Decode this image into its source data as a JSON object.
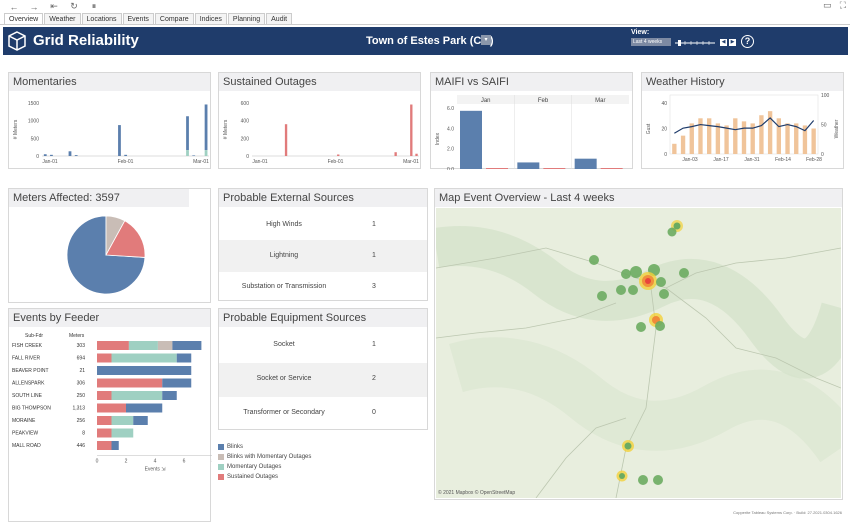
{
  "browser": {
    "back_icon": "←",
    "forward_icon": "→",
    "first_icon": "⇤",
    "reload_icon": "↻",
    "pause_icon": "⏸"
  },
  "tabs": [
    "Overview",
    "Weather",
    "Locations",
    "Events",
    "Compare",
    "Indices",
    "Planning",
    "Audit"
  ],
  "header": {
    "title": "Grid Reliability",
    "town": "Town of Estes Park (CO)",
    "view_label": "View:",
    "view_value": "Last 4 weeks",
    "help": "?"
  },
  "colors": {
    "navy": "#1f3c6b",
    "blue": "#5b7fad",
    "red": "#e17b7b",
    "teal": "#9fd0c2",
    "gray": "#c9bdb6",
    "orange": "#f0c49a"
  },
  "momentaries": {
    "title": "Momentaries",
    "chart_data": {
      "type": "bar",
      "ylabel": "# Meters",
      "yticks": [
        "1500",
        "1000",
        "500",
        "0"
      ],
      "xticks": [
        "Jan-01",
        "Feb-01",
        "Mar-01"
      ],
      "ylim": [
        0,
        1800
      ],
      "values": [
        60,
        40,
        0,
        0,
        160,
        30,
        0,
        0,
        0,
        0,
        0,
        0,
        1050,
        40,
        0,
        0,
        0,
        0,
        0,
        0,
        0,
        0,
        0,
        1350,
        20,
        0,
        1750
      ],
      "teal": [
        0,
        0,
        0,
        0,
        0,
        0,
        0,
        0,
        0,
        0,
        0,
        0,
        0,
        0,
        0,
        0,
        0,
        0,
        0,
        0,
        0,
        0,
        0,
        200,
        0,
        0,
        200
      ]
    }
  },
  "sustained": {
    "title": "Sustained Outages",
    "chart_data": {
      "type": "bar",
      "ylabel": "# Meters",
      "yticks": [
        "600",
        "400",
        "200",
        "0"
      ],
      "xticks": [
        "Jan-01",
        "Feb-01",
        "Mar-01"
      ],
      "ylim": [
        0,
        700
      ],
      "values": [
        0,
        0,
        0,
        0,
        0,
        0,
        420,
        0,
        0,
        0,
        0,
        0,
        0,
        0,
        0,
        0,
        20,
        0,
        0,
        0,
        0,
        0,
        0,
        0,
        0,
        0,
        0,
        50,
        0,
        0,
        680,
        30
      ]
    }
  },
  "maifi": {
    "title": "MAIFI vs SAIFI",
    "chart_data": {
      "type": "bar",
      "ylabel": "Index",
      "categories": [
        "Jan",
        "Feb",
        "Mar"
      ],
      "yticks": [
        "6.0",
        "4.0",
        "2.0",
        "0.0"
      ],
      "ylim": [
        0,
        6.5
      ],
      "series": [
        {
          "name": "MAIFI",
          "values": [
            6.2,
            0.7,
            1.1
          ]
        },
        {
          "name": "SAIFI",
          "values": [
            0.05,
            0.05,
            0.05
          ]
        }
      ]
    }
  },
  "weather": {
    "title": "Weather History",
    "chart_data": {
      "type": "bar",
      "ylabel": "Gust",
      "y2label": "Weather",
      "yticks": [
        "40",
        "20",
        "0"
      ],
      "y2ticks": [
        "100",
        "50",
        "0"
      ],
      "xticks": [
        "Jan-03",
        "Jan-17",
        "Jan-31",
        "Feb-14",
        "Feb-28"
      ],
      "bars": [
        10,
        18,
        30,
        35,
        35,
        30,
        28,
        35,
        32,
        30,
        38,
        42,
        35,
        30,
        30,
        28,
        25
      ],
      "line": [
        25,
        35,
        38,
        42,
        40,
        38,
        35,
        32,
        35,
        35,
        40,
        55,
        38,
        42,
        38,
        30,
        50
      ]
    }
  },
  "meters": {
    "title": "Meters Affected: 3597",
    "chart_data": {
      "type": "pie",
      "values": [
        74,
        8,
        18
      ]
    }
  },
  "external": {
    "title": "Probable External Sources",
    "rows": [
      {
        "label": "High Winds",
        "value": "1"
      },
      {
        "label": "Lightning",
        "value": "1"
      },
      {
        "label": "Substation or Transmission",
        "value": "3"
      }
    ]
  },
  "equipment": {
    "title": "Probable Equipment Sources",
    "rows": [
      {
        "label": "Socket",
        "value": "1"
      },
      {
        "label": "Socket or Service",
        "value": "2"
      },
      {
        "label": "Transformer or Secondary",
        "value": "0"
      }
    ]
  },
  "feeder": {
    "title": "Events by Feeder",
    "col_subfdr": "Sub-Fdr",
    "col_meters": "Meters",
    "rows": [
      {
        "name": "FISH CREEK",
        "meters": "303",
        "segs": [
          2.2,
          2.0,
          1.0,
          2.0
        ]
      },
      {
        "name": "FALL RIVER",
        "meters": "694",
        "segs": [
          1.0,
          4.5,
          0,
          1.0
        ]
      },
      {
        "name": "BEAVER POINT",
        "meters": "21",
        "segs": [
          0,
          0,
          0,
          6.5
        ]
      },
      {
        "name": "ALLENSPARK",
        "meters": "306",
        "segs": [
          4.5,
          0,
          0,
          2.0
        ]
      },
      {
        "name": "SOUTH LINE",
        "meters": "250",
        "segs": [
          1.0,
          3.5,
          0,
          1.0
        ]
      },
      {
        "name": "BIG THOMPSON",
        "meters": "1,313",
        "segs": [
          2.0,
          0,
          0,
          2.5
        ]
      },
      {
        "name": "MORAINE",
        "meters": "256",
        "segs": [
          1.0,
          1.5,
          0,
          1.0
        ]
      },
      {
        "name": "PEAKVIEW",
        "meters": "8",
        "segs": [
          1.0,
          1.5,
          0,
          0
        ]
      },
      {
        "name": "MALL ROAD",
        "meters": "446",
        "segs": [
          1.0,
          0,
          0,
          0.5
        ]
      }
    ],
    "xticks": [
      "0",
      "2",
      "4",
      "6",
      "8"
    ],
    "xlabel": "Events"
  },
  "legend": [
    "Blinks",
    "Blinks with Momentary Outages",
    "Momentary Outages",
    "Sustained Outages"
  ],
  "map": {
    "title": "Map Event Overview - Last 4 weeks",
    "attribution": "© 2021 Mapbox  © OpenStreetMap"
  },
  "footer": "Copperite Tableau Systems Corp. · Build: 27.2021.0304.1626"
}
